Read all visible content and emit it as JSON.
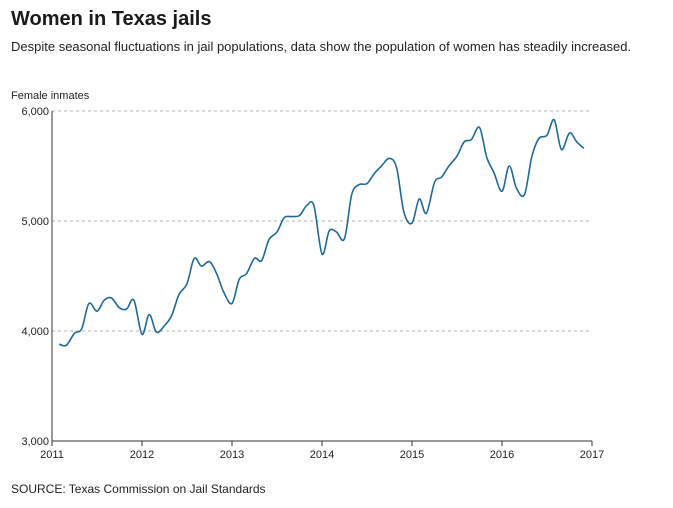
{
  "header": {
    "title": "Women in Texas jails",
    "subtitle": "Despite seasonal fluctuations in jail populations, data show the population of women has steadily increased."
  },
  "footer": {
    "source": "SOURCE: Texas Commission on Jail Standards"
  },
  "colors": {
    "line": "#1d6996",
    "grid": "#9a9a9a",
    "axis": "#333333"
  },
  "chart_data": {
    "type": "line",
    "title": "",
    "xlabel": "",
    "ylabel": "Female inmates",
    "xlim": [
      2011,
      2017
    ],
    "ylim": [
      3000,
      6000
    ],
    "y_ticks": [
      3000,
      4000,
      5000,
      6000
    ],
    "y_tick_labels": [
      "3,000",
      "4,000",
      "5,000",
      "6,000"
    ],
    "x_ticks": [
      2011,
      2012,
      2013,
      2014,
      2015,
      2016,
      2017
    ],
    "x_tick_labels": [
      "2011",
      "2012",
      "2013",
      "2014",
      "2015",
      "2016",
      "2017"
    ],
    "grid": "horizontal dashed",
    "series": [
      {
        "x": [
          2011.08,
          2011.16,
          2011.25,
          2011.33,
          2011.41,
          2011.5,
          2011.58,
          2011.66,
          2011.75,
          2011.83,
          2011.91,
          2012.0,
          2012.08,
          2012.16,
          2012.25,
          2012.33,
          2012.41,
          2012.5,
          2012.58,
          2012.66,
          2012.75,
          2012.83,
          2012.91,
          2013.0,
          2013.08,
          2013.16,
          2013.25,
          2013.33,
          2013.41,
          2013.5,
          2013.58,
          2013.66,
          2013.75,
          2013.83,
          2013.91,
          2014.0,
          2014.08,
          2014.16,
          2014.25,
          2014.33,
          2014.41,
          2014.5,
          2014.58,
          2014.66,
          2014.75,
          2014.83,
          2014.91,
          2015.0,
          2015.08,
          2015.16,
          2015.25,
          2015.33,
          2015.41,
          2015.5,
          2015.58,
          2015.66,
          2015.75,
          2015.83,
          2015.91,
          2016.0,
          2016.08,
          2016.16,
          2016.25,
          2016.33,
          2016.41,
          2016.5,
          2016.58,
          2016.66,
          2016.75,
          2016.83,
          2016.91
        ],
        "values": [
          3880,
          3870,
          3980,
          4020,
          4250,
          4180,
          4280,
          4300,
          4210,
          4200,
          4280,
          3970,
          4150,
          3990,
          4050,
          4140,
          4330,
          4430,
          4660,
          4590,
          4630,
          4520,
          4350,
          4250,
          4470,
          4520,
          4660,
          4640,
          4830,
          4900,
          5030,
          5040,
          5050,
          5140,
          5140,
          4700,
          4910,
          4900,
          4840,
          5240,
          5330,
          5340,
          5430,
          5500,
          5570,
          5480,
          5080,
          4980,
          5200,
          5070,
          5350,
          5400,
          5500,
          5590,
          5720,
          5740,
          5850,
          5580,
          5440,
          5270,
          5500,
          5300,
          5240,
          5580,
          5750,
          5780,
          5920,
          5650,
          5800,
          5720,
          5660
        ]
      }
    ]
  }
}
